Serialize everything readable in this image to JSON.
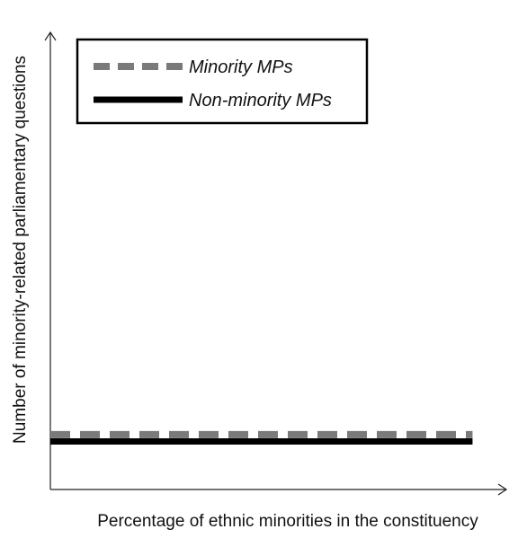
{
  "chart_data": {
    "type": "line",
    "title": "",
    "xlabel": "Percentage of ethnic minorities in the constituency",
    "ylabel": "Number of minority-related parliamentary questions",
    "x": [
      0,
      1
    ],
    "xlim": [
      0,
      1.08
    ],
    "ylim": [
      0,
      1
    ],
    "x_ticks": [],
    "y_ticks": [],
    "grid": false,
    "legend_position": "top-left",
    "series": [
      {
        "name": "Minority MPs",
        "values": [
          0.12,
          0.12
        ],
        "color": "#7a7a7a",
        "style": "dashed"
      },
      {
        "name": "Non-minority MPs",
        "values": [
          0.105,
          0.105
        ],
        "color": "#000000",
        "style": "solid"
      }
    ]
  }
}
